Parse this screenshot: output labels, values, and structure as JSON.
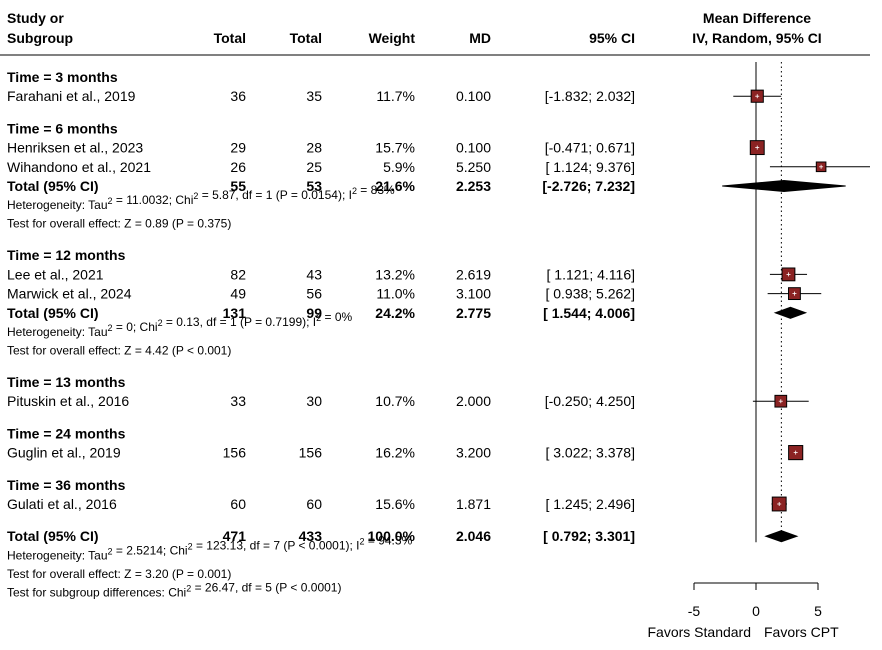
{
  "headers": {
    "study_line1": "Study or",
    "study_line2": "Subgroup",
    "total_exp": "Total",
    "total_ctrl": "Total",
    "weight": "Weight",
    "md": "MD",
    "ci": "95% CI",
    "plot_line1": "Mean Difference",
    "plot_line2": "IV, Random, 95% CI"
  },
  "colors": {
    "box": "#8b2323",
    "diamond": "#000000",
    "text": "#000000"
  },
  "rows": [
    {
      "kind": "subgroup",
      "label": "Time = 3 months"
    },
    {
      "kind": "study",
      "label": "Farahani et al., 2019",
      "total_exp": "36",
      "total_ctrl": "35",
      "weight": "11.7%",
      "md": "0.100",
      "ci": "[-1.832; 2.032]"
    },
    {
      "kind": "gap"
    },
    {
      "kind": "subgroup",
      "label": "Time = 6 months"
    },
    {
      "kind": "study",
      "label": "Henriksen et al., 2023",
      "total_exp": "29",
      "total_ctrl": "28",
      "weight": "15.7%",
      "md": "0.100",
      "ci": "[-0.471; 0.671]"
    },
    {
      "kind": "study",
      "label": "Wihandono et al., 2021",
      "total_exp": "26",
      "total_ctrl": "25",
      "weight": "5.9%",
      "md": "5.250",
      "ci": "[ 1.124; 9.376]"
    },
    {
      "kind": "total",
      "label": "Total (95% CI)",
      "total_exp": "55",
      "total_ctrl": "53",
      "weight": "21.6%",
      "md": "2.253",
      "ci": "[-2.726; 7.232]"
    },
    {
      "kind": "note",
      "label": "Heterogeneity: Tau² = 11.0032; Chi² = 5.87, df = 1 (P = 0.0154); I² = 83%"
    },
    {
      "kind": "note",
      "label": "Test for overall effect: Z = 0.89 (P = 0.375)"
    },
    {
      "kind": "gap"
    },
    {
      "kind": "subgroup",
      "label": "Time = 12 months"
    },
    {
      "kind": "study",
      "label": "Lee et al., 2021",
      "total_exp": "82",
      "total_ctrl": "43",
      "weight": "13.2%",
      "md": "2.619",
      "ci": "[ 1.121; 4.116]"
    },
    {
      "kind": "study",
      "label": "Marwick et al., 2024",
      "total_exp": "49",
      "total_ctrl": "56",
      "weight": "11.0%",
      "md": "3.100",
      "ci": "[ 0.938; 5.262]"
    },
    {
      "kind": "total",
      "label": "Total (95% CI)",
      "total_exp": "131",
      "total_ctrl": "99",
      "weight": "24.2%",
      "md": "2.775",
      "ci": "[ 1.544; 4.006]"
    },
    {
      "kind": "note",
      "label": "Heterogeneity: Tau² = 0; Chi² = 0.13, df = 1 (P = 0.7199); I² = 0%"
    },
    {
      "kind": "note",
      "label": "Test for overall effect: Z = 4.42 (P < 0.001)"
    },
    {
      "kind": "gap"
    },
    {
      "kind": "subgroup",
      "label": "Time = 13 months"
    },
    {
      "kind": "study",
      "label": "Pituskin et al., 2016",
      "total_exp": "33",
      "total_ctrl": "30",
      "weight": "10.7%",
      "md": "2.000",
      "ci": "[-0.250; 4.250]"
    },
    {
      "kind": "gap"
    },
    {
      "kind": "subgroup",
      "label": "Time = 24 months"
    },
    {
      "kind": "study",
      "label": "Guglin et al., 2019",
      "total_exp": "156",
      "total_ctrl": "156",
      "weight": "16.2%",
      "md": "3.200",
      "ci": "[ 3.022; 3.378]"
    },
    {
      "kind": "gap"
    },
    {
      "kind": "subgroup",
      "label": "Time = 36 months"
    },
    {
      "kind": "study",
      "label": "Gulati et al., 2016",
      "total_exp": "60",
      "total_ctrl": "60",
      "weight": "15.6%",
      "md": "1.871",
      "ci": "[ 1.245; 2.496]"
    },
    {
      "kind": "gap"
    },
    {
      "kind": "total",
      "label": "Total (95% CI)",
      "total_exp": "471",
      "total_ctrl": "433",
      "weight": "100.0%",
      "md": "2.046",
      "ci": "[ 0.792; 3.301]"
    },
    {
      "kind": "note",
      "label": "Heterogeneity: Tau² = 2.5214; Chi² = 123.13, df = 7 (P < 0.0001); I² = 94.3%"
    },
    {
      "kind": "note",
      "label": "Test for overall effect: Z = 3.20 (P = 0.001)"
    },
    {
      "kind": "note",
      "label": "Test for subgroup differences: Chi² = 26.47, df = 5 (P < 0.0001)"
    }
  ],
  "axis": {
    "ticks": [
      -5,
      0,
      5
    ],
    "xlim": [
      -5,
      5
    ],
    "left_label": "Favors Standard",
    "right_label": "Favors CPT"
  },
  "chart_data": {
    "type": "forest",
    "xlim": [
      -5,
      5
    ],
    "reference_line": 0,
    "pooled_line": 2.046,
    "studies": [
      {
        "name": "Farahani et al., 2019",
        "md": 0.1,
        "lo": -1.832,
        "hi": 2.032,
        "weight": 11.7
      },
      {
        "name": "Henriksen et al., 2023",
        "md": 0.1,
        "lo": -0.471,
        "hi": 0.671,
        "weight": 15.7
      },
      {
        "name": "Wihandono et al., 2021",
        "md": 5.25,
        "lo": 1.124,
        "hi": 9.376,
        "weight": 5.9
      },
      {
        "name": "Lee et al., 2021",
        "md": 2.619,
        "lo": 1.121,
        "hi": 4.116,
        "weight": 13.2
      },
      {
        "name": "Marwick et al., 2024",
        "md": 3.1,
        "lo": 0.938,
        "hi": 5.262,
        "weight": 11.0
      },
      {
        "name": "Pituskin et al., 2016",
        "md": 2.0,
        "lo": -0.25,
        "hi": 4.25,
        "weight": 10.7
      },
      {
        "name": "Guglin et al., 2019",
        "md": 3.2,
        "lo": 3.022,
        "hi": 3.378,
        "weight": 16.2
      },
      {
        "name": "Gulati et al., 2016",
        "md": 1.871,
        "lo": 1.245,
        "hi": 2.496,
        "weight": 15.6
      }
    ],
    "totals": [
      {
        "name": "Time = 6 months",
        "md": 2.253,
        "lo": -2.726,
        "hi": 7.232
      },
      {
        "name": "Time = 12 months",
        "md": 2.775,
        "lo": 1.544,
        "hi": 4.006
      },
      {
        "name": "Overall",
        "md": 2.046,
        "lo": 0.792,
        "hi": 3.301
      }
    ]
  }
}
